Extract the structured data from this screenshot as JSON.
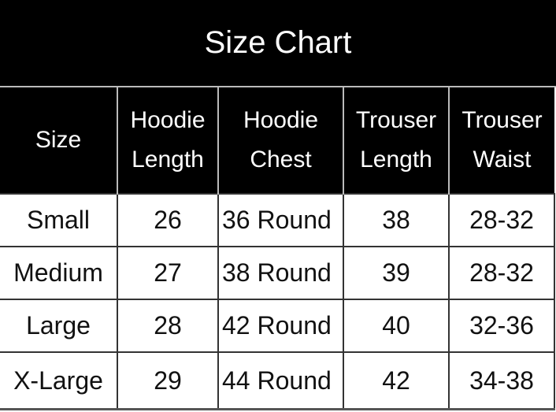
{
  "title": "Size Chart",
  "headers": [
    {
      "line1": "Size",
      "line2": ""
    },
    {
      "line1": "Hoodie",
      "line2": "Length"
    },
    {
      "line1": "Hoodie",
      "line2": "Chest"
    },
    {
      "line1": "Trouser",
      "line2": "Length"
    },
    {
      "line1": "Trouser",
      "line2": "Waist"
    }
  ],
  "rows": [
    [
      "Small",
      "26",
      "36 Round",
      "38",
      "28-32"
    ],
    [
      "Medium",
      "27",
      "38 Round",
      "39",
      "28-32"
    ],
    [
      "Large",
      "28",
      "42 Round",
      "40",
      "32-36"
    ],
    [
      "X-Large",
      "29",
      "44 Round",
      "42",
      "34-38"
    ]
  ]
}
